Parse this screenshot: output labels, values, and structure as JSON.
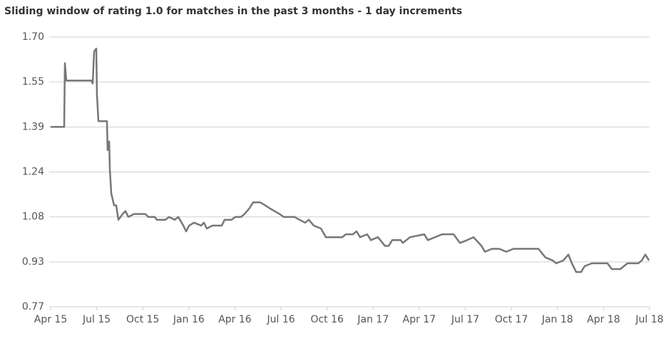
{
  "chart_data": {
    "type": "line",
    "title": "Sliding window of rating 1.0 for matches in the past 3 months - 1 day increments",
    "x": [
      0,
      0.88,
      0.93,
      1.02,
      2.65,
      2.74,
      2.83,
      2.97,
      3.02,
      3.11,
      3.67,
      3.71,
      3.81,
      3.86,
      3.95,
      4.13,
      4.27,
      4.41,
      4.69,
      4.87,
      5.06,
      5.43,
      6.17,
      6.36,
      6.78,
      6.92,
      7.47,
      7.71,
      8.08,
      8.31,
      8.64,
      8.82,
      9.01,
      9.33,
      9.8,
      9.98,
      10.17,
      10.54,
      11.14,
      11.33,
      11.79,
      12.02,
      12.4,
      12.63,
      12.95,
      13.18,
      13.65,
      13.97,
      14.25,
      14.58,
      14.9,
      15.18,
      15.88,
      16.2,
      16.57,
      16.81,
      17.13,
      17.6,
      17.92,
      18.99,
      19.22,
      19.68,
      19.92,
      20.15,
      20.61,
      20.85,
      21.31,
      21.77,
      22.01,
      22.24,
      22.79,
      22.93,
      23.4,
      24.33,
      24.56,
      25.49,
      26.24,
      26.65,
      27.12,
      27.53,
      28.05,
      28.28,
      28.74,
      29.21,
      29.67,
      30.13,
      31.76,
      32.22,
      32.68,
      32.92,
      33.38,
      33.71,
      33.94,
      34.22,
      34.54,
      34.77,
      35.24,
      36.26,
      36.54,
      37.09,
      37.33,
      37.56,
      38.26,
      38.49,
      38.72,
      38.96
    ],
    "series": [
      {
        "color": "#777777",
        "values": [
          1.39,
          1.39,
          1.61,
          1.55,
          1.55,
          1.54,
          1.65,
          1.66,
          1.5,
          1.41,
          1.41,
          1.31,
          1.34,
          1.24,
          1.16,
          1.12,
          1.12,
          1.07,
          1.09,
          1.1,
          1.08,
          1.09,
          1.09,
          1.08,
          1.08,
          1.07,
          1.07,
          1.08,
          1.07,
          1.08,
          1.05,
          1.03,
          1.05,
          1.06,
          1.05,
          1.06,
          1.04,
          1.05,
          1.05,
          1.07,
          1.07,
          1.08,
          1.08,
          1.09,
          1.11,
          1.13,
          1.13,
          1.12,
          1.11,
          1.1,
          1.09,
          1.08,
          1.08,
          1.07,
          1.06,
          1.07,
          1.05,
          1.04,
          1.01,
          1.01,
          1.02,
          1.02,
          1.03,
          1.01,
          1.02,
          1,
          1.01,
          0.98,
          0.98,
          1,
          1,
          0.99,
          1.01,
          1.02,
          1,
          1.02,
          1.02,
          0.99,
          1,
          1.01,
          0.98,
          0.96,
          0.97,
          0.97,
          0.96,
          0.97,
          0.97,
          0.94,
          0.93,
          0.92,
          0.93,
          0.95,
          0.92,
          0.89,
          0.89,
          0.91,
          0.92,
          0.92,
          0.9,
          0.9,
          0.91,
          0.92,
          0.92,
          0.93,
          0.95,
          0.93
        ]
      }
    ],
    "xlim": [
      0,
      39
    ],
    "xticks": [
      {
        "value": 0,
        "label": "Apr 15"
      },
      {
        "value": 3,
        "label": "Jul 15"
      },
      {
        "value": 6,
        "label": "Oct 15"
      },
      {
        "value": 9,
        "label": "Jan 16"
      },
      {
        "value": 12,
        "label": "Apr 16"
      },
      {
        "value": 15,
        "label": "Jul 16"
      },
      {
        "value": 18,
        "label": "Oct 16"
      },
      {
        "value": 21,
        "label": "Jan 17"
      },
      {
        "value": 24,
        "label": "Apr 17"
      },
      {
        "value": 27,
        "label": "Jul 17"
      },
      {
        "value": 30,
        "label": "Oct 17"
      },
      {
        "value": 33,
        "label": "Jan 18"
      },
      {
        "value": 36,
        "label": "Apr 18"
      },
      {
        "value": 39,
        "label": "Jul 18"
      }
    ],
    "ylim": [
      0.77,
      1.7
    ],
    "yticks": [
      {
        "value": 0.77,
        "label": "0.77"
      },
      {
        "value": 0.925,
        "label": "0.93"
      },
      {
        "value": 1.08,
        "label": "1.08"
      },
      {
        "value": 1.235,
        "label": "1.24"
      },
      {
        "value": 1.39,
        "label": "1.39"
      },
      {
        "value": 1.545,
        "label": "1.55"
      },
      {
        "value": 1.7,
        "label": "1.70"
      }
    ],
    "grid": true
  }
}
